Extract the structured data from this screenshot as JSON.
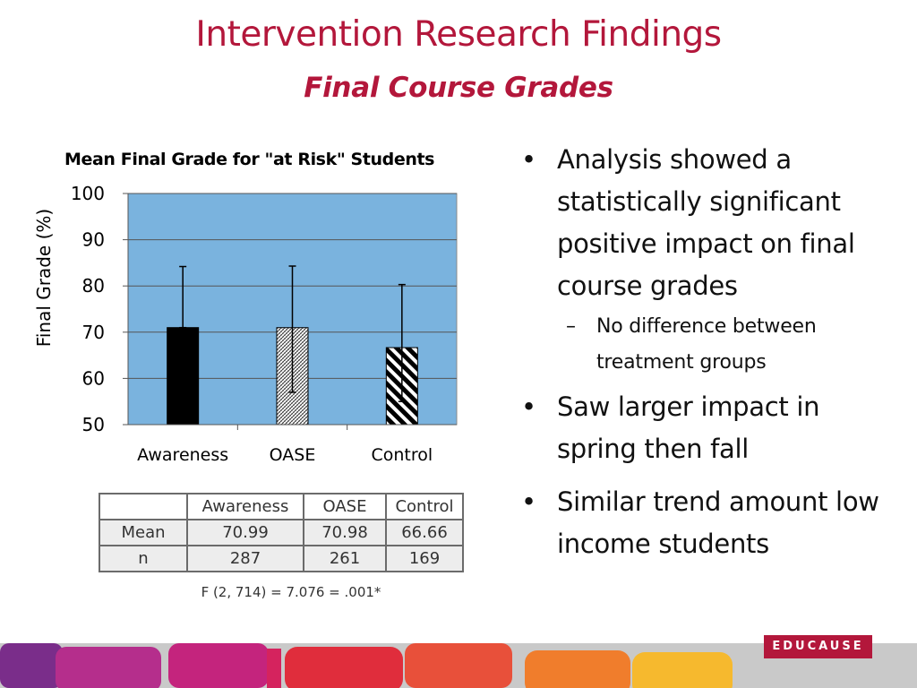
{
  "slide": {
    "title": "Intervention Research Findings",
    "subtitle": "Final Course Grades",
    "title_color": "#b3173b"
  },
  "chart_data": {
    "type": "bar",
    "title": "Mean Final Grade for \"at Risk\" Students",
    "ylabel": "Final Grade (%)",
    "xlabel": "",
    "categories": [
      "Awareness",
      "OASE",
      "Control"
    ],
    "values": [
      70.99,
      70.98,
      66.66
    ],
    "error_low": [
      70.99,
      57,
      55
    ],
    "error_high": [
      84.2,
      84.3,
      80.3
    ],
    "ylim": [
      50,
      100
    ],
    "yticks": [
      100,
      90,
      80,
      70,
      60,
      50
    ],
    "grid": true,
    "legend": "none",
    "plot_background": "#7ab3de",
    "bar_fills": [
      "solid-black",
      "fine-hatch",
      "diagonal-stripes"
    ]
  },
  "table": {
    "headers": [
      "",
      "Awareness",
      "OASE",
      "Control"
    ],
    "rows": [
      [
        "Mean",
        "70.99",
        "70.98",
        "66.66"
      ],
      [
        "n",
        "287",
        "261",
        "169"
      ]
    ],
    "footnote": "F (2, 714) = 7.076 = .001*"
  },
  "bullets": [
    {
      "text": "Analysis showed a statistically significant positive impact on final course grades",
      "sub": [
        "No difference between treatment groups"
      ]
    },
    {
      "text": "Saw larger impact in spring then fall",
      "sub": []
    },
    {
      "text": "Similar trend amount low income students",
      "sub": []
    }
  ],
  "footer": {
    "logo_text": "EDUCAUSE",
    "band_colors": [
      "#7a2d8a",
      "#b52e8c",
      "#c4247d",
      "#d5235e",
      "#e02d3c",
      "#e8503a",
      "#f07d2c",
      "#f6b92e",
      "#f5d02c",
      "#c8c8c8"
    ]
  }
}
